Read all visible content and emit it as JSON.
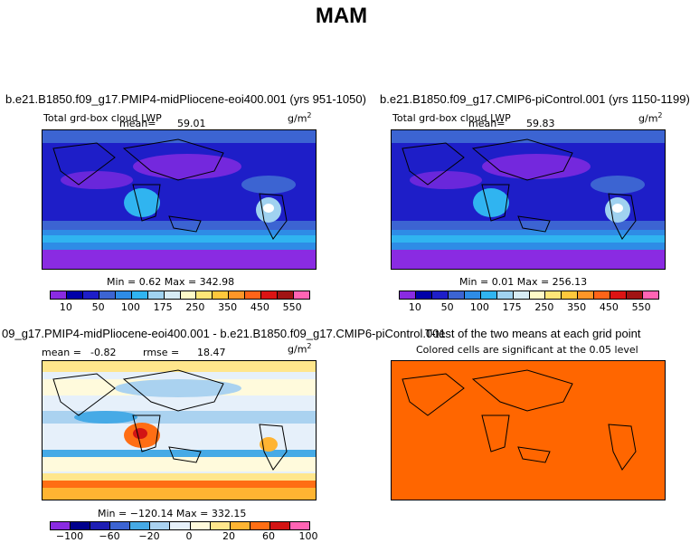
{
  "figure": {
    "title": "MAM"
  },
  "panels": {
    "p1": {
      "title": "b.e21.B1850.f09_g17.PMIP4-midPliocene-eoi400.001 (yrs 951-1050)",
      "variable": "Total grd-box cloud LWP",
      "mean_label": "mean=",
      "mean": "59.01",
      "units": "g/m",
      "units_exp": "2",
      "stats": "Min =    0.62  Max = 342.98"
    },
    "p2": {
      "title": "b.e21.B1850.f09_g17.CMIP6-piControl.001 (yrs 1150-1199)",
      "variable": "Total grd-box cloud LWP",
      "mean_label": "mean=",
      "mean": "59.83",
      "units": "g/m",
      "units_exp": "2",
      "stats": "Min =    0.01  Max = 256.13"
    },
    "p3": {
      "title": "09_g17.PMIP4-midPliocene-eoi400.001 - b.e21.B1850.f09_g17.CMIP6-piControl.001",
      "mean_label": "mean =",
      "mean": "-0.82",
      "rmse_label": "rmse =",
      "rmse": "18.47",
      "units": "g/m",
      "units_exp": "2",
      "stats": "Min = −120.14  Max = 332.15"
    },
    "p4": {
      "title": "T-test of the two means at each grid point",
      "subtitle": "Colored cells are significant at the 0.05 level"
    }
  },
  "chart_data": [
    {
      "type": "heatmap",
      "title": "b.e21.B1850.f09_g17.PMIP4-midPliocene-eoi400.001 (yrs 951-1050)",
      "variable": "Total grd-box cloud LWP",
      "units": "g/m2",
      "mean": 59.01,
      "min": 0.62,
      "max": 342.98,
      "colorbar_levels": [
        10,
        25,
        50,
        75,
        100,
        125,
        150,
        175,
        200,
        250,
        300,
        350,
        400,
        450,
        500,
        550
      ],
      "colorbar_labels": [
        "10",
        "50",
        "100",
        "175",
        "250",
        "350",
        "450",
        "550"
      ]
    },
    {
      "type": "heatmap",
      "title": "b.e21.B1850.f09_g17.CMIP6-piControl.001 (yrs 1150-1199)",
      "variable": "Total grd-box cloud LWP",
      "units": "g/m2",
      "mean": 59.83,
      "min": 0.01,
      "max": 256.13,
      "colorbar_levels": [
        10,
        25,
        50,
        75,
        100,
        125,
        150,
        175,
        200,
        250,
        300,
        350,
        400,
        450,
        500,
        550
      ],
      "colorbar_labels": [
        "10",
        "50",
        "100",
        "175",
        "250",
        "350",
        "450",
        "550"
      ]
    },
    {
      "type": "heatmap",
      "title": "09_g17.PMIP4-midPliocene-eoi400.001 - b.e21.B1850.f09_g17.CMIP6-piControl.001",
      "units": "g/m2",
      "mean": -0.82,
      "rmse": 18.47,
      "min": -120.14,
      "max": 332.15,
      "colorbar_levels": [
        -100,
        -80,
        -60,
        -40,
        -20,
        -10,
        0,
        10,
        20,
        40,
        60,
        80,
        100
      ],
      "colorbar_labels": [
        "-100",
        "-60",
        "-20",
        "0",
        "20",
        "60",
        "100"
      ]
    },
    {
      "type": "heatmap",
      "title": "T-test of the two means at each grid point",
      "subtitle": "Colored cells are significant at the 0.05 level",
      "significance_level": 0.05
    }
  ],
  "colors": {
    "lwp_colorbar": [
      "#8a2be2",
      "#0000a8",
      "#1e1ec8",
      "#3c64d2",
      "#2e8ce6",
      "#30b4f0",
      "#a0d2f0",
      "#d7ebf5",
      "#fffac8",
      "#ffe678",
      "#ffc83c",
      "#ff9628",
      "#ff6419",
      "#dc1414",
      "#a01414",
      "#ff64b4"
    ],
    "diff_colorbar": [
      "#8a2be2",
      "#00008c",
      "#1e1eb4",
      "#3c64d2",
      "#46aae6",
      "#aad2f0",
      "#e6f0fa",
      "#fffadc",
      "#ffe68c",
      "#ffb432",
      "#ff6e14",
      "#d21414",
      "#ff64b4"
    ],
    "ttest_fill": "#ff6600"
  }
}
